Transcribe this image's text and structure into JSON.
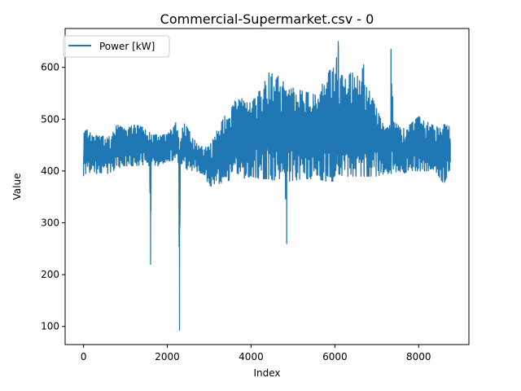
{
  "chart_data": {
    "type": "line",
    "title": "Commercial-Supermarket.csv - 0",
    "xlabel": "Index",
    "ylabel": "Value",
    "xlim": [
      -440,
      9200
    ],
    "ylim": [
      65,
      675
    ],
    "xticks": [
      0,
      2000,
      4000,
      6000,
      8000
    ],
    "yticks": [
      100,
      200,
      300,
      400,
      500,
      600
    ],
    "grid": false,
    "legend_position": "upper left",
    "colors": {
      "series": "#1f77b4",
      "axes": "#000000",
      "background": "#ffffff"
    },
    "series": [
      {
        "name": "Power [kW]",
        "color": "#1f77b4",
        "n_points": 8760,
        "envelope": {
          "x": [
            0,
            100,
            300,
            600,
            800,
            1000,
            1200,
            1400,
            1580,
            1600,
            1620,
            1640,
            1800,
            2000,
            2200,
            2270,
            2290,
            2310,
            2400,
            2500,
            2700,
            2900,
            3000,
            3200,
            3400,
            3600,
            3800,
            4000,
            4200,
            4400,
            4600,
            4800,
            4830,
            4850,
            4870,
            5000,
            5200,
            5400,
            5600,
            5800,
            6000,
            6080,
            6100,
            6200,
            6400,
            6600,
            6700,
            6800,
            7000,
            7200,
            7340,
            7360,
            7400,
            7600,
            7800,
            8000,
            8200,
            8400,
            8600,
            8760
          ],
          "low": [
            390,
            395,
            395,
            395,
            405,
            410,
            410,
            412,
            410,
            220,
            410,
            410,
            410,
            420,
            420,
            415,
            93,
            415,
            410,
            400,
            400,
            390,
            370,
            375,
            380,
            385,
            385,
            390,
            385,
            385,
            380,
            380,
            260,
            380,
            380,
            380,
            385,
            385,
            385,
            380,
            380,
            390,
            395,
            390,
            390,
            390,
            390,
            390,
            390,
            395,
            395,
            395,
            395,
            395,
            400,
            400,
            400,
            400,
            375,
            405
          ],
          "high": [
            475,
            480,
            470,
            465,
            490,
            480,
            490,
            485,
            480,
            480,
            475,
            470,
            470,
            470,
            495,
            470,
            460,
            465,
            495,
            480,
            455,
            445,
            450,
            480,
            510,
            535,
            540,
            530,
            555,
            590,
            585,
            575,
            590,
            560,
            555,
            560,
            555,
            550,
            545,
            590,
            600,
            650,
            600,
            580,
            590,
            580,
            610,
            560,
            520,
            480,
            490,
            635,
            500,
            480,
            490,
            505,
            495,
            485,
            490,
            485
          ]
        }
      }
    ]
  }
}
